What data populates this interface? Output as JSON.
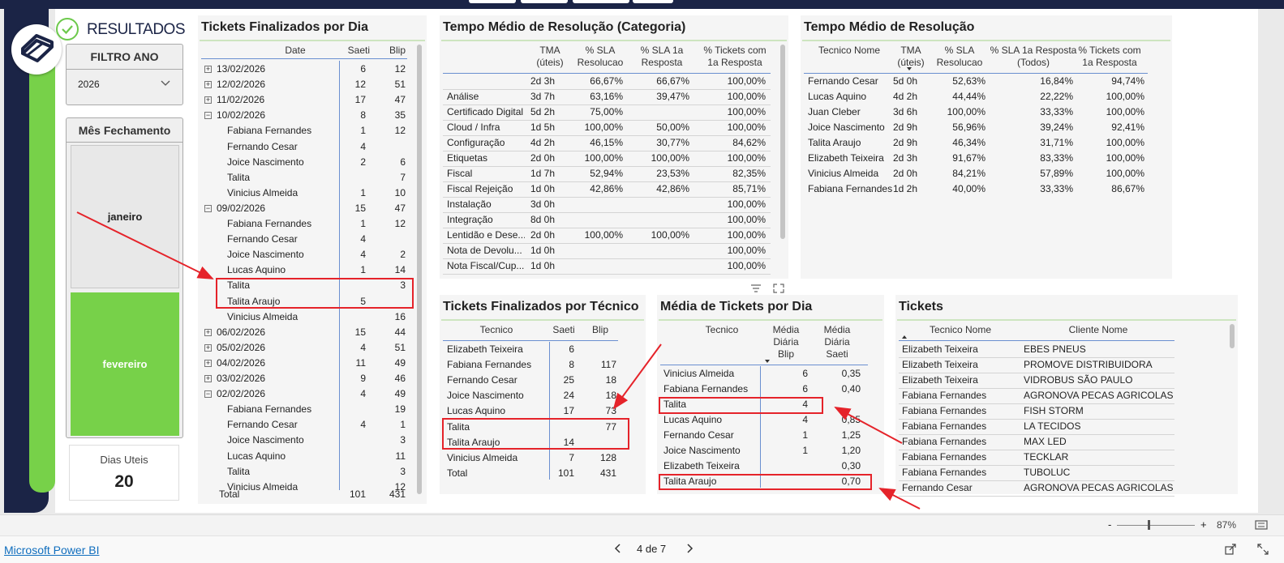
{
  "report": {
    "title": "RESULTADOS"
  },
  "filtro_ano": {
    "title": "FILTRO ANO",
    "value": "2026"
  },
  "mes_fechamento": {
    "title": "Mês Fechamento",
    "items": [
      "janeiro",
      "fevereiro"
    ],
    "selected": "fevereiro"
  },
  "dias_uteis": {
    "label": "Dias Uteis",
    "value": "20"
  },
  "colors": {
    "navy": "#1b2446",
    "green": "#77d149",
    "highlight": "#e5232a",
    "accent": "#6a8fd0"
  },
  "por_dia": {
    "title": "Tickets Finalizados por Dia",
    "headers": [
      "Date",
      "Saeti",
      "Blip"
    ],
    "rows": [
      {
        "label": "13/02/2026",
        "level": 0,
        "exp": "+",
        "saeti": "6",
        "blip": "12"
      },
      {
        "label": "12/02/2026",
        "level": 0,
        "exp": "+",
        "saeti": "12",
        "blip": "51"
      },
      {
        "label": "11/02/2026",
        "level": 0,
        "exp": "+",
        "saeti": "17",
        "blip": "47"
      },
      {
        "label": "10/02/2026",
        "level": 0,
        "exp": "−",
        "saeti": "8",
        "blip": "35"
      },
      {
        "label": "Fabiana Fernandes",
        "level": 1,
        "exp": "",
        "saeti": "1",
        "blip": "12"
      },
      {
        "label": "Fernando Cesar",
        "level": 1,
        "exp": "",
        "saeti": "4",
        "blip": ""
      },
      {
        "label": "Joice Nascimento",
        "level": 1,
        "exp": "",
        "saeti": "2",
        "blip": "6"
      },
      {
        "label": "Talita",
        "level": 1,
        "exp": "",
        "saeti": "",
        "blip": "7"
      },
      {
        "label": "Vinicius Almeida",
        "level": 1,
        "exp": "",
        "saeti": "1",
        "blip": "10"
      },
      {
        "label": "09/02/2026",
        "level": 0,
        "exp": "−",
        "saeti": "15",
        "blip": "47"
      },
      {
        "label": "Fabiana Fernandes",
        "level": 1,
        "exp": "",
        "saeti": "1",
        "blip": "12"
      },
      {
        "label": "Fernando Cesar",
        "level": 1,
        "exp": "",
        "saeti": "4",
        "blip": ""
      },
      {
        "label": "Joice Nascimento",
        "level": 1,
        "exp": "",
        "saeti": "4",
        "blip": "2"
      },
      {
        "label": "Lucas Aquino",
        "level": 1,
        "exp": "",
        "saeti": "1",
        "blip": "14"
      },
      {
        "label": "Talita",
        "level": 1,
        "exp": "",
        "saeti": "",
        "blip": "3"
      },
      {
        "label": "Talita Araujo",
        "level": 1,
        "exp": "",
        "saeti": "5",
        "blip": ""
      },
      {
        "label": "Vinicius Almeida",
        "level": 1,
        "exp": "",
        "saeti": "",
        "blip": "16"
      },
      {
        "label": "06/02/2026",
        "level": 0,
        "exp": "+",
        "saeti": "15",
        "blip": "44"
      },
      {
        "label": "05/02/2026",
        "level": 0,
        "exp": "+",
        "saeti": "4",
        "blip": "51"
      },
      {
        "label": "04/02/2026",
        "level": 0,
        "exp": "+",
        "saeti": "11",
        "blip": "49"
      },
      {
        "label": "03/02/2026",
        "level": 0,
        "exp": "+",
        "saeti": "9",
        "blip": "46"
      },
      {
        "label": "02/02/2026",
        "level": 0,
        "exp": "−",
        "saeti": "4",
        "blip": "49"
      },
      {
        "label": "Fabiana Fernandes",
        "level": 1,
        "exp": "",
        "saeti": "",
        "blip": "19"
      },
      {
        "label": "Fernando Cesar",
        "level": 1,
        "exp": "",
        "saeti": "4",
        "blip": "1"
      },
      {
        "label": "Joice Nascimento",
        "level": 1,
        "exp": "",
        "saeti": "",
        "blip": "3"
      },
      {
        "label": "Lucas Aquino",
        "level": 1,
        "exp": "",
        "saeti": "",
        "blip": "11"
      },
      {
        "label": "Talita",
        "level": 1,
        "exp": "",
        "saeti": "",
        "blip": "3"
      },
      {
        "label": "Vinicius Almeida",
        "level": 1,
        "exp": "",
        "saeti": "",
        "blip": "12"
      }
    ],
    "total": {
      "label": "Total",
      "saeti": "101",
      "blip": "431"
    }
  },
  "tempo_categoria": {
    "title": "Tempo Médio de Resolução (Categoria)",
    "headers": [
      "TMA\n(úteis)",
      "% SLA\nResolucao",
      "% SLA 1a\nResposta",
      "% Tickets com\n1a Resposta"
    ],
    "rows": [
      [
        "",
        "2d 3h",
        "66,67%",
        "66,67%",
        "100,00%"
      ],
      [
        "Análise",
        "3d 7h",
        "63,16%",
        "39,47%",
        "100,00%"
      ],
      [
        "Certificado Digital",
        "5d 2h",
        "75,00%",
        "",
        "100,00%"
      ],
      [
        "Cloud / Infra",
        "1d 5h",
        "100,00%",
        "50,00%",
        "100,00%"
      ],
      [
        "Configuração",
        "4d 2h",
        "46,15%",
        "30,77%",
        "84,62%"
      ],
      [
        "Etiquetas",
        "2d 0h",
        "100,00%",
        "100,00%",
        "100,00%"
      ],
      [
        "Fiscal",
        "1d 7h",
        "52,94%",
        "23,53%",
        "82,35%"
      ],
      [
        "Fiscal Rejeição",
        "1d 0h",
        "42,86%",
        "42,86%",
        "85,71%"
      ],
      [
        "Instalação",
        "3d 0h",
        "",
        "",
        "100,00%"
      ],
      [
        "Integração",
        "8d 0h",
        "",
        "",
        "100,00%"
      ],
      [
        "Lentidão e Dese...",
        "2d 0h",
        "100,00%",
        "100,00%",
        "100,00%"
      ],
      [
        "Nota de Devolu...",
        "1d 0h",
        "",
        "",
        "100,00%"
      ],
      [
        "Nota Fiscal/Cup...",
        "1d 0h",
        "",
        "",
        "100,00%"
      ]
    ]
  },
  "tempo_tecnico": {
    "title": "Tempo Médio de Resolução",
    "headers": [
      "Tecnico Nome",
      "TMA\n(úteis)",
      "% SLA\nResolucao",
      "% SLA 1a Resposta\n(Todos)",
      "% Tickets com\n1a Resposta"
    ],
    "rows": [
      [
        "Fernando Cesar",
        "5d 0h",
        "52,63%",
        "16,84%",
        "94,74%"
      ],
      [
        "Lucas Aquino",
        "4d 2h",
        "44,44%",
        "22,22%",
        "100,00%"
      ],
      [
        "Juan Cleber",
        "3d 6h",
        "100,00%",
        "33,33%",
        "100,00%"
      ],
      [
        "Joice Nascimento",
        "2d 9h",
        "56,96%",
        "39,24%",
        "92,41%"
      ],
      [
        "Talita Araujo",
        "2d 9h",
        "46,34%",
        "31,71%",
        "100,00%"
      ],
      [
        "Elizabeth Teixeira",
        "2d 3h",
        "91,67%",
        "83,33%",
        "100,00%"
      ],
      [
        "Vinicius Almeida",
        "2d 0h",
        "84,21%",
        "57,89%",
        "100,00%"
      ],
      [
        "Fabiana Fernandes",
        "1d 2h",
        "40,00%",
        "33,33%",
        "86,67%"
      ]
    ]
  },
  "por_tecnico": {
    "title": "Tickets Finalizados por Técnico",
    "headers": [
      "Tecnico",
      "Saeti",
      "Blip"
    ],
    "rows": [
      [
        "Elizabeth Teixeira",
        "6",
        ""
      ],
      [
        "Fabiana Fernandes",
        "8",
        "117"
      ],
      [
        "Fernando Cesar",
        "25",
        "18"
      ],
      [
        "Joice Nascimento",
        "24",
        "18"
      ],
      [
        "Lucas Aquino",
        "17",
        "73"
      ],
      [
        "Talita",
        "",
        "77"
      ],
      [
        "Talita Araujo",
        "14",
        ""
      ],
      [
        "Vinicius Almeida",
        "7",
        "128"
      ]
    ],
    "total": [
      "Total",
      "101",
      "431"
    ]
  },
  "media_dia": {
    "title": "Média de Tickets por Dia",
    "headers": [
      "Tecnico",
      "Média\nDiária\nBlip",
      "Média\nDiária\nSaeti"
    ],
    "rows": [
      [
        "Vinicius Almeida",
        "6",
        "0,35"
      ],
      [
        "Fabiana Fernandes",
        "6",
        "0,40"
      ],
      [
        "Talita",
        "4",
        ""
      ],
      [
        "Lucas Aquino",
        "4",
        "0,85"
      ],
      [
        "Fernando Cesar",
        "1",
        "1,25"
      ],
      [
        "Joice Nascimento",
        "1",
        "1,20"
      ],
      [
        "Elizabeth Teixeira",
        "",
        "0,30"
      ],
      [
        "Talita Araujo",
        "",
        "0,70"
      ]
    ]
  },
  "tickets": {
    "title": "Tickets",
    "headers": [
      "Tecnico Nome",
      "Cliente Nome"
    ],
    "rows": [
      [
        "Elizabeth Teixeira",
        "EBES PNEUS"
      ],
      [
        "Elizabeth Teixeira",
        "PROMOVE DISTRIBUIDORA"
      ],
      [
        "Elizabeth Teixeira",
        "VIDROBUS SÃO PAULO"
      ],
      [
        "Fabiana Fernandes",
        "AGRONOVA PECAS AGRICOLAS"
      ],
      [
        "Fabiana Fernandes",
        "FISH STORM"
      ],
      [
        "Fabiana Fernandes",
        "LA TECIDOS"
      ],
      [
        "Fabiana Fernandes",
        "MAX LED"
      ],
      [
        "Fabiana Fernandes",
        "TECKLAR"
      ],
      [
        "Fabiana Fernandes",
        "TUBOLUC"
      ],
      [
        "Fernando Cesar",
        "AGRONOVA PECAS AGRICOLAS"
      ]
    ]
  },
  "statusbar": {
    "minus": "-",
    "plus": "+",
    "zoom": "87%"
  },
  "footer": {
    "brand": "Microsoft Power BI",
    "page": "4 de 7"
  }
}
